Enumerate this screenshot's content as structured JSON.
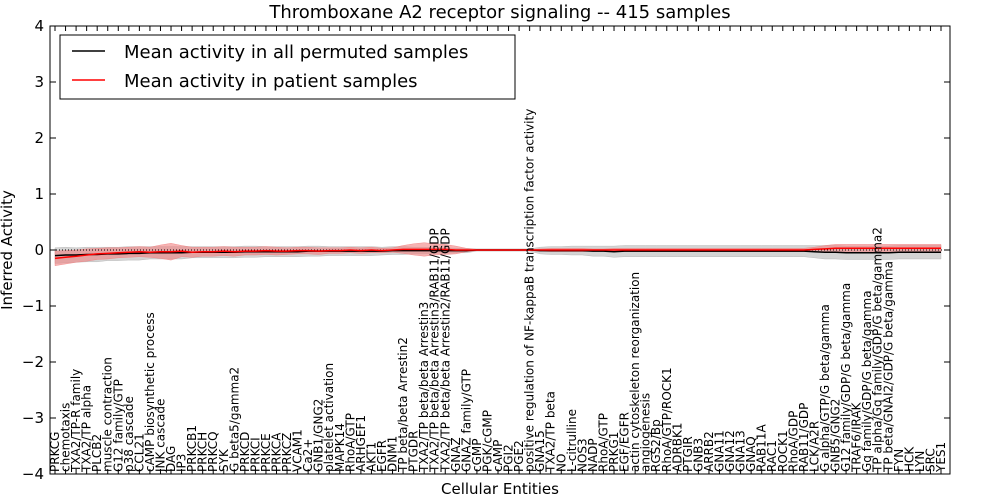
{
  "chart_data": {
    "type": "line",
    "title": "Thromboxane A2 receptor signaling -- 415 samples",
    "xlabel": "Cellular Entities",
    "ylabel": "Inferred Activity",
    "ylim": [
      -4,
      4
    ],
    "yticks": [
      -4,
      -3,
      -2,
      -1,
      0,
      1,
      2,
      3,
      4
    ],
    "legend_position": "top-left",
    "grid": false,
    "baseline_dotted": 0,
    "colors": {
      "permuted": "#000000",
      "patient": "#ff0000",
      "patient_band": "#f08080",
      "permuted_band": "#b0b0b0"
    },
    "categories": [
      "PRKCG",
      "chemotaxis",
      "TXA2/TP-R family",
      "TXA2/TP alpha",
      "PLCB2",
      "muscle contraction",
      "G12 family/GTP",
      "p38 cascade",
      "CCL21",
      "cAMP biosynthetic process",
      "JNK cascade",
      "DAG",
      "IP3",
      "PRKCB1",
      "PRKCH",
      "PRKCQ",
      "SYK",
      "G beta5/gamma2",
      "PRKCD",
      "PRKCI",
      "PRKCE",
      "PRKCA",
      "PRKCZ",
      "VCAM1",
      "Ca2+",
      "GNB1/GNG2",
      "platelet activation",
      "MAPK14",
      "RhoA/GTP",
      "ARHGEF1",
      "AKT1",
      "EGFR",
      "DNM1",
      "TP beta/beta Arrestin2",
      "PTGDR",
      "TXA2/TP beta/beta Arrestin3",
      "TXA2/TP beta/beta Arrestin3/RAB11/GDP",
      "TXA2/TP beta/beta Arrestin2/RAB11/GDP",
      "GNAZ",
      "GNAZ family/GTP",
      "cGMP",
      "PGK/cGMP",
      "cAMP",
      "PGI2",
      "PGE2",
      "positive regulation of NF-kappaB transcription factor activity",
      "GNA15",
      "TXA2/TP beta",
      "NO",
      "L-citrulline",
      "NOS3",
      "NADP",
      "RhoA/GTP",
      "PRKG1",
      "EGF/EGFR",
      "actin cytoskeleton reorganization",
      "angiogenesis",
      "RGS2/Bp",
      "RhoA/GTP/ROCK1",
      "ADRBK1",
      "PTGIR",
      "GNB3",
      "ARRB2",
      "GNA11",
      "GNA12",
      "GNA13",
      "GNAQ",
      "RAB11A",
      "RAC1",
      "ROCK1",
      "RhoA/GDP",
      "RAB11/GDP",
      "LCK/A2R",
      "G alpha/GTP/G beta/gamma",
      "GNB5/GNG2",
      "G12 family/GDP/G beta/gamma",
      "TRAF6/IRAK",
      "Gq family/GDP/G beta/gamma",
      "TP alpha/Gq family/GDP/G beta/gamma2",
      "TP beta/GNAI2/GDP/G beta/gamma",
      "FYN",
      "HCK",
      "LYN",
      "SRC",
      "YES1"
    ],
    "series": [
      {
        "name": "Mean activity in all permuted samples",
        "color": "#000000",
        "values": [
          -0.1,
          -0.09,
          -0.09,
          -0.08,
          -0.08,
          -0.07,
          -0.07,
          -0.06,
          -0.06,
          -0.05,
          -0.05,
          -0.05,
          -0.05,
          -0.04,
          -0.04,
          -0.04,
          -0.04,
          -0.04,
          -0.03,
          -0.03,
          -0.03,
          -0.03,
          -0.03,
          -0.03,
          -0.02,
          -0.02,
          -0.02,
          -0.02,
          -0.02,
          -0.02,
          -0.02,
          -0.02,
          -0.01,
          -0.01,
          -0.01,
          -0.01,
          -0.01,
          -0.01,
          -0.01,
          -0.01,
          0.0,
          0.0,
          0.0,
          0.0,
          0.0,
          0.0,
          -0.01,
          -0.01,
          -0.01,
          -0.01,
          -0.01,
          -0.02,
          -0.02,
          -0.03,
          -0.02,
          -0.02,
          -0.02,
          -0.02,
          -0.02,
          -0.02,
          -0.02,
          -0.02,
          -0.02,
          -0.02,
          -0.02,
          -0.02,
          -0.02,
          -0.02,
          -0.02,
          -0.02,
          -0.02,
          -0.02,
          -0.03,
          -0.04,
          -0.04,
          -0.05,
          -0.05,
          -0.05,
          -0.05,
          -0.05,
          -0.04,
          -0.04,
          -0.04,
          -0.04,
          -0.04
        ],
        "band_halfwidth": [
          0.14,
          0.14,
          0.13,
          0.13,
          0.13,
          0.12,
          0.12,
          0.12,
          0.12,
          0.11,
          0.11,
          0.11,
          0.11,
          0.1,
          0.1,
          0.1,
          0.1,
          0.1,
          0.1,
          0.1,
          0.09,
          0.09,
          0.09,
          0.09,
          0.09,
          0.09,
          0.08,
          0.08,
          0.08,
          0.08,
          0.08,
          0.07,
          0.07,
          0.07,
          0.06,
          0.06,
          0.05,
          0.05,
          0.04,
          0.04,
          0.02,
          0.02,
          0.02,
          0.02,
          0.02,
          0.02,
          0.06,
          0.07,
          0.07,
          0.08,
          0.08,
          0.09,
          0.09,
          0.1,
          0.1,
          0.1,
          0.1,
          0.1,
          0.1,
          0.1,
          0.1,
          0.1,
          0.1,
          0.1,
          0.1,
          0.1,
          0.1,
          0.1,
          0.1,
          0.1,
          0.1,
          0.1,
          0.11,
          0.12,
          0.12,
          0.12,
          0.12,
          0.12,
          0.12,
          0.12,
          0.12,
          0.12,
          0.12,
          0.12,
          0.12
        ]
      },
      {
        "name": "Mean activity in patient samples",
        "color": "#ff0000",
        "values": [
          -0.15,
          -0.13,
          -0.11,
          -0.09,
          -0.07,
          -0.06,
          -0.05,
          -0.04,
          -0.03,
          -0.04,
          -0.03,
          -0.03,
          -0.02,
          -0.04,
          -0.03,
          -0.03,
          -0.02,
          -0.03,
          -0.02,
          -0.02,
          -0.01,
          -0.02,
          -0.02,
          -0.01,
          -0.01,
          -0.02,
          -0.01,
          -0.01,
          0.0,
          -0.01,
          0.0,
          -0.01,
          0.0,
          0.01,
          0.01,
          0.01,
          0.01,
          0.01,
          0.0,
          0.0,
          0.0,
          0.0,
          0.0,
          0.0,
          0.0,
          0.0,
          0.0,
          0.0,
          0.0,
          0.0,
          0.0,
          0.0,
          0.0,
          0.0,
          0.0,
          0.0,
          0.0,
          0.0,
          0.0,
          0.0,
          0.0,
          0.0,
          0.0,
          0.0,
          0.0,
          0.0,
          0.0,
          0.0,
          0.0,
          0.0,
          0.0,
          0.0,
          0.01,
          0.02,
          0.03,
          0.03,
          0.03,
          0.03,
          0.03,
          0.03,
          0.03,
          0.03,
          0.03,
          0.03,
          0.03
        ],
        "band_halfwidth": [
          0.13,
          0.12,
          0.11,
          0.11,
          0.1,
          0.1,
          0.09,
          0.09,
          0.09,
          0.09,
          0.12,
          0.15,
          0.1,
          0.09,
          0.08,
          0.08,
          0.08,
          0.08,
          0.07,
          0.07,
          0.07,
          0.07,
          0.06,
          0.06,
          0.06,
          0.06,
          0.05,
          0.05,
          0.05,
          0.05,
          0.05,
          0.04,
          0.04,
          0.07,
          0.1,
          0.12,
          0.1,
          0.09,
          0.07,
          0.03,
          0.01,
          0.01,
          0.01,
          0.01,
          0.01,
          0.01,
          0.02,
          0.03,
          0.03,
          0.03,
          0.03,
          0.02,
          0.02,
          0.03,
          0.03,
          0.03,
          0.03,
          0.03,
          0.03,
          0.03,
          0.03,
          0.03,
          0.03,
          0.03,
          0.03,
          0.03,
          0.03,
          0.03,
          0.03,
          0.03,
          0.03,
          0.03,
          0.04,
          0.06,
          0.07,
          0.07,
          0.07,
          0.07,
          0.07,
          0.07,
          0.07,
          0.07,
          0.07,
          0.07,
          0.07
        ]
      }
    ]
  }
}
